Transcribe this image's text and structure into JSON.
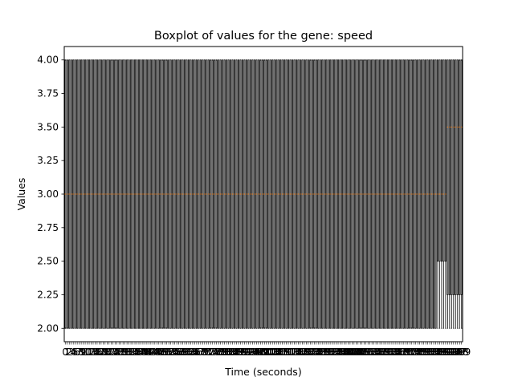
{
  "chart_data": {
    "type": "boxplot",
    "title": "Boxplot of values for the gene: speed",
    "xlabel": "Time (seconds)",
    "ylabel": "Values",
    "ylim": [
      1.9,
      4.1
    ],
    "yticks": [
      "2.00",
      "2.25",
      "2.50",
      "2.75",
      "3.00",
      "3.25",
      "3.50",
      "3.75",
      "4.00"
    ],
    "ytick_values": [
      2.0,
      2.25,
      2.5,
      2.75,
      3.0,
      3.25,
      3.5,
      3.75,
      4.0
    ],
    "grid": false,
    "box_count": 200,
    "segments": [
      {
        "from": 1,
        "to": 187,
        "whislo": 2.0,
        "q1": 2.0,
        "median": 3.0,
        "q3": 4.0,
        "whishi": 4.0
      },
      {
        "from": 188,
        "to": 192,
        "whislo": 2.0,
        "q1": 2.5,
        "median": 3.0,
        "q3": 4.0,
        "whishi": 4.0
      },
      {
        "from": 193,
        "to": 196,
        "whislo": 2.0,
        "q1": 2.25,
        "median": 3.5,
        "q3": 4.0,
        "whishi": 4.0
      },
      {
        "from": 197,
        "to": 200,
        "whislo": 2.0,
        "q1": 2.25,
        "median": 3.5,
        "q3": 4.0,
        "whishi": 4.0
      }
    ],
    "colors": {
      "box": "#000000",
      "median": "#ff7f0e",
      "frame": "#000000"
    }
  }
}
